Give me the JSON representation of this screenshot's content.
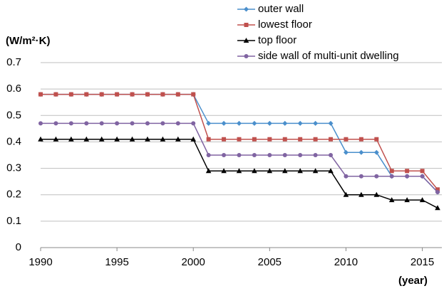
{
  "chart_data": {
    "type": "line",
    "y_label": "(W/m²·K)",
    "x_label": "(year)",
    "x": [
      1990,
      1991,
      1992,
      1993,
      1994,
      1995,
      1996,
      1997,
      1998,
      1999,
      2000,
      2001,
      2002,
      2003,
      2004,
      2005,
      2006,
      2007,
      2008,
      2009,
      2010,
      2011,
      2012,
      2013,
      2014,
      2015,
      2016
    ],
    "series": [
      {
        "name": "outer wall",
        "color": "#4a8fcc",
        "marker": "diamond",
        "values": [
          0.58,
          0.58,
          0.58,
          0.58,
          0.58,
          0.58,
          0.58,
          0.58,
          0.58,
          0.58,
          0.58,
          0.47,
          0.47,
          0.47,
          0.47,
          0.47,
          0.47,
          0.47,
          0.47,
          0.47,
          0.36,
          0.36,
          0.36,
          0.27,
          0.27,
          0.27,
          0.21
        ]
      },
      {
        "name": "lowest floor",
        "color": "#c0504d",
        "marker": "square",
        "values": [
          0.58,
          0.58,
          0.58,
          0.58,
          0.58,
          0.58,
          0.58,
          0.58,
          0.58,
          0.58,
          0.58,
          0.41,
          0.41,
          0.41,
          0.41,
          0.41,
          0.41,
          0.41,
          0.41,
          0.41,
          0.41,
          0.41,
          0.41,
          0.29,
          0.29,
          0.29,
          0.22
        ]
      },
      {
        "name": "top floor",
        "color": "#000000",
        "marker": "triangle",
        "values": [
          0.41,
          0.41,
          0.41,
          0.41,
          0.41,
          0.41,
          0.41,
          0.41,
          0.41,
          0.41,
          0.41,
          0.29,
          0.29,
          0.29,
          0.29,
          0.29,
          0.29,
          0.29,
          0.29,
          0.29,
          0.2,
          0.2,
          0.2,
          0.18,
          0.18,
          0.18,
          0.15
        ]
      },
      {
        "name": "side wall of multi-unit dwelling",
        "color": "#8064a2",
        "marker": "circle",
        "values": [
          0.47,
          0.47,
          0.47,
          0.47,
          0.47,
          0.47,
          0.47,
          0.47,
          0.47,
          0.47,
          0.47,
          0.35,
          0.35,
          0.35,
          0.35,
          0.35,
          0.35,
          0.35,
          0.35,
          0.35,
          0.27,
          0.27,
          0.27,
          0.27,
          0.27,
          0.27,
          0.21
        ]
      }
    ],
    "xlim": [
      1990,
      2016
    ],
    "xticks": [
      1990,
      1995,
      2000,
      2005,
      2010,
      2015
    ],
    "ylim": [
      0,
      0.7
    ],
    "yticks": [
      0,
      0.1,
      0.2,
      0.3,
      0.4,
      0.5,
      0.6,
      0.7
    ],
    "grid": true
  }
}
